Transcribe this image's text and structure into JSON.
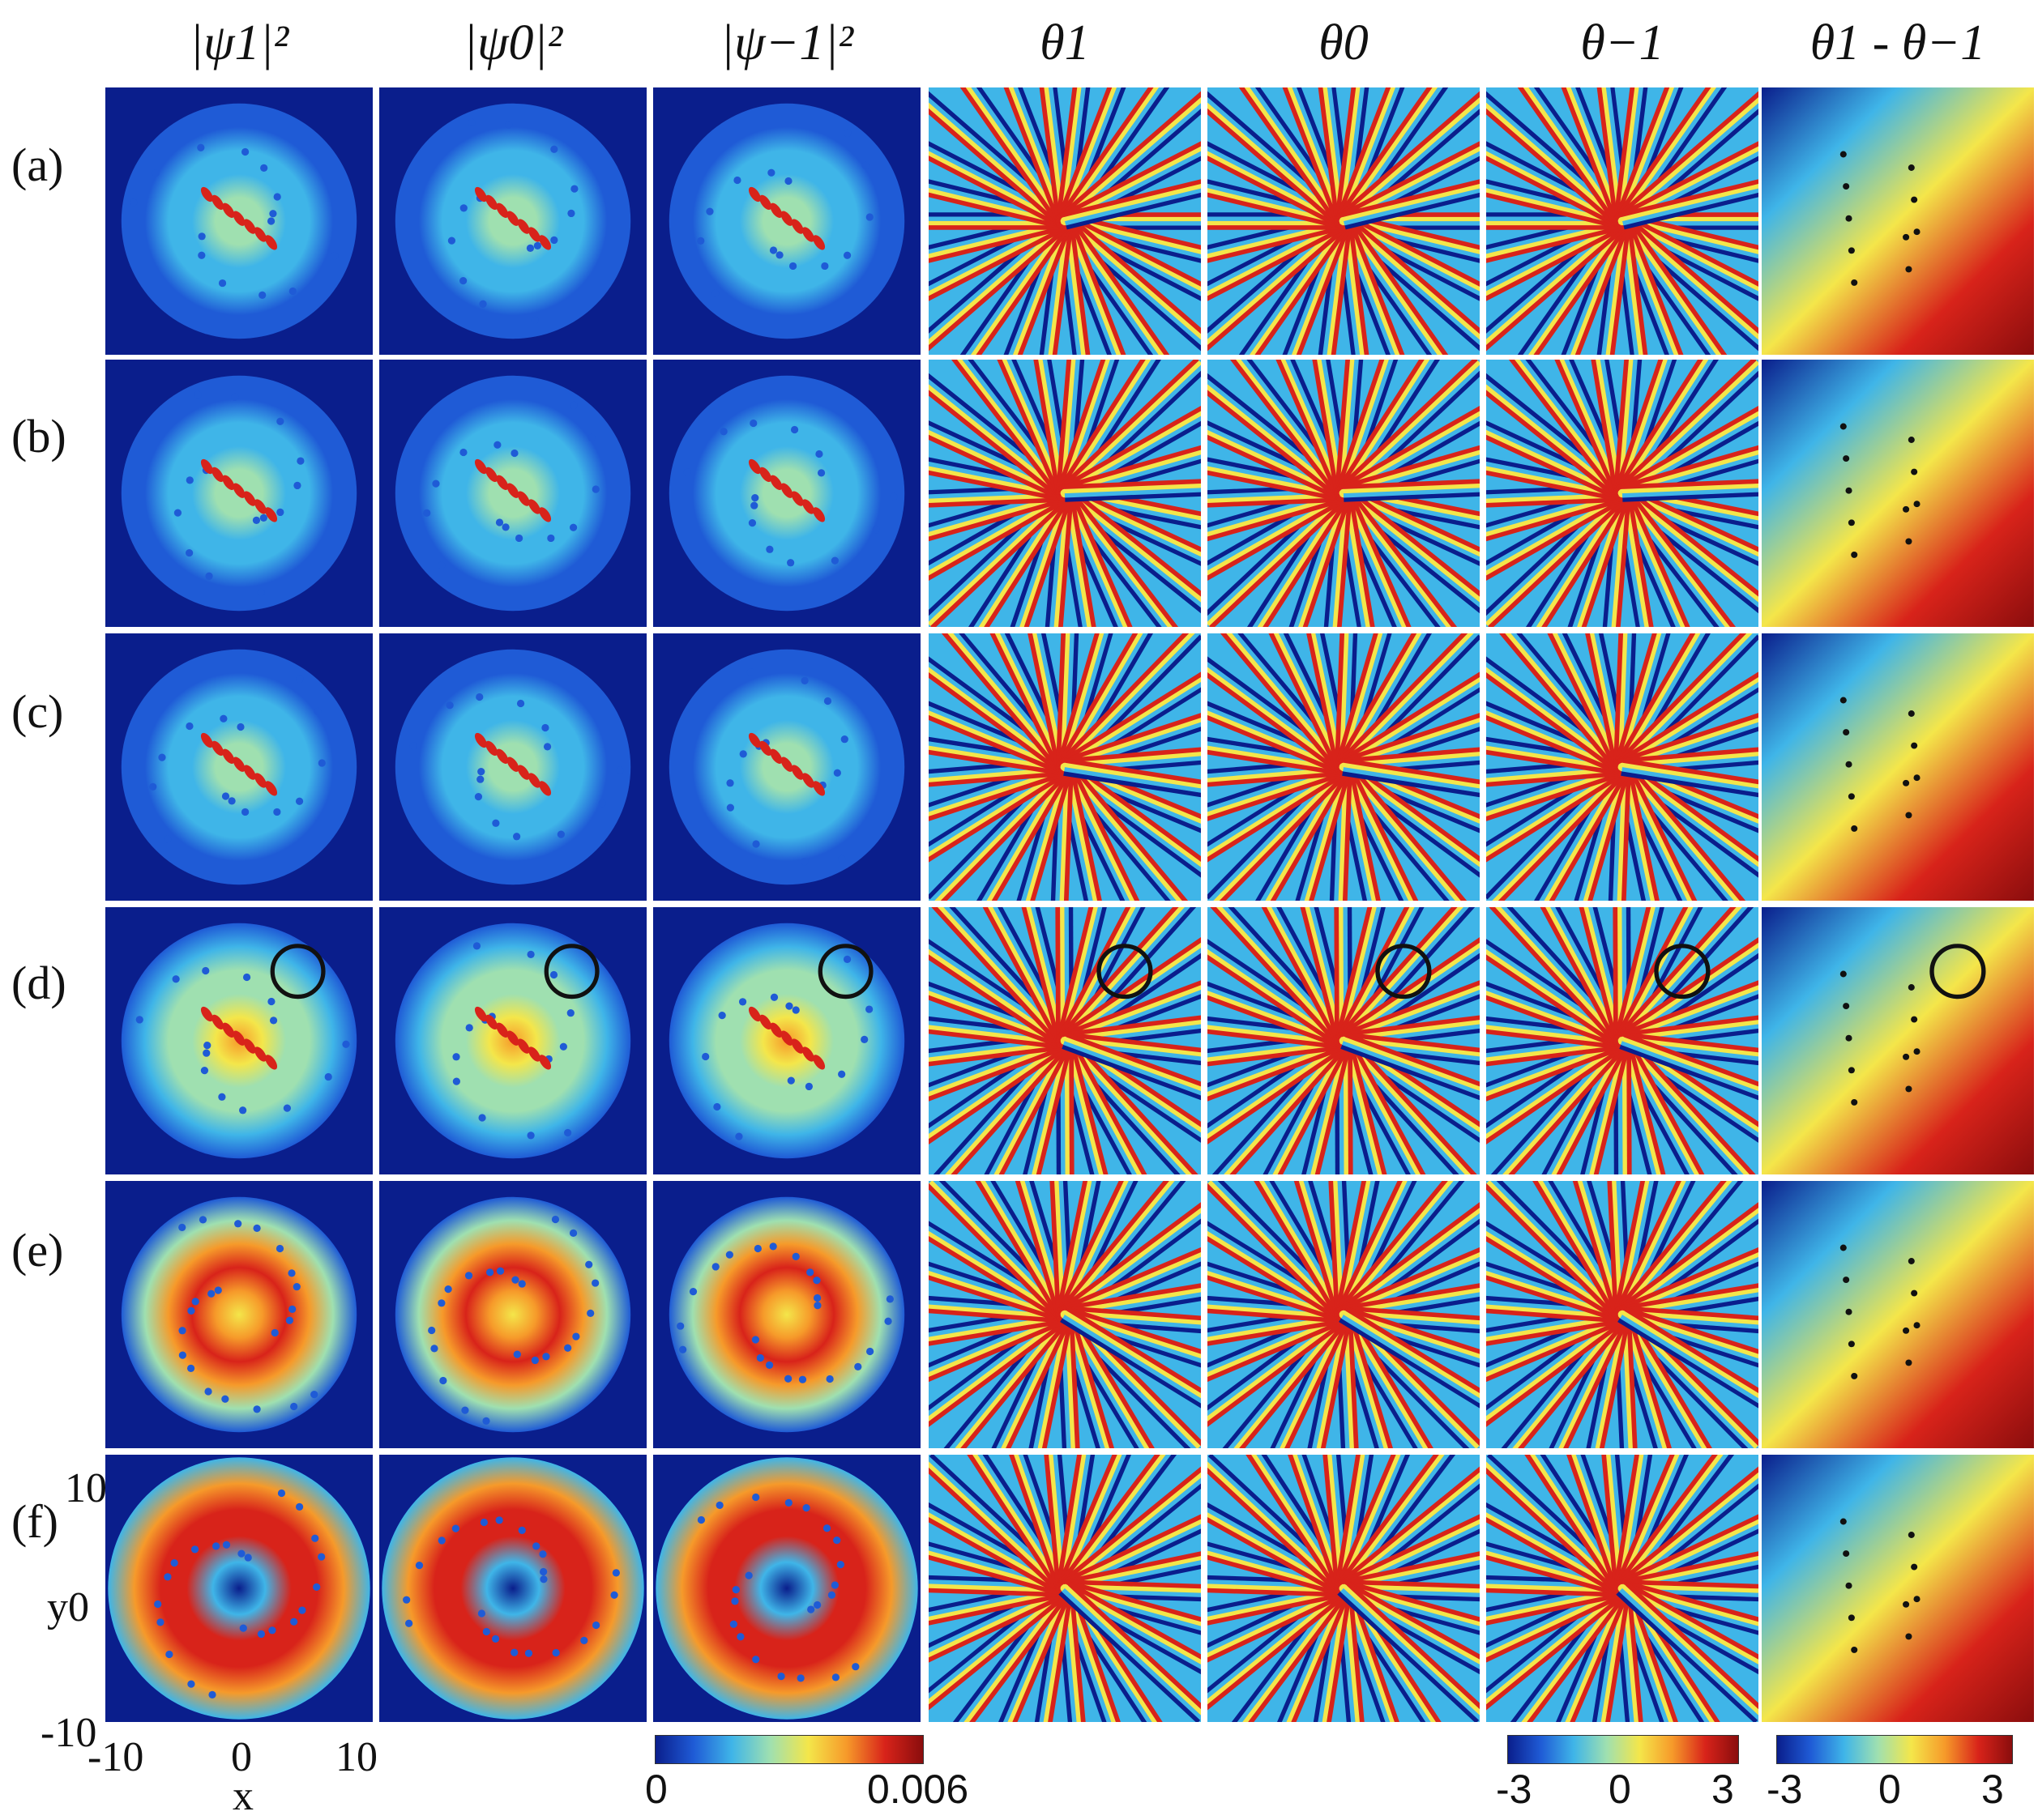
{
  "columns": [
    {
      "label": "|ψ1|²",
      "kind": "density"
    },
    {
      "label": "|ψ0|²",
      "kind": "density"
    },
    {
      "label": "|ψ−1|²",
      "kind": "density"
    },
    {
      "label": "θ1",
      "kind": "phase"
    },
    {
      "label": "θ0",
      "kind": "phase"
    },
    {
      "label": "θ−1",
      "kind": "phase"
    },
    {
      "label": "θ1 - θ−1",
      "kind": "relphase"
    }
  ],
  "rows": [
    {
      "label": "(a)",
      "fill": 0.45
    },
    {
      "label": "(b)",
      "fill": 0.45
    },
    {
      "label": "(c)",
      "fill": 0.5
    },
    {
      "label": "(d)",
      "fill": 0.55
    },
    {
      "label": "(e)",
      "fill": 0.8
    },
    {
      "label": "(f)",
      "fill": 0.95
    }
  ],
  "circled_row": "(d)",
  "axes": {
    "y_ticks": [
      "10",
      "y0",
      "-10"
    ],
    "x_ticks": [
      "-10",
      "0",
      "10"
    ],
    "x_label": "x"
  },
  "colorbars": {
    "density": {
      "min": "0",
      "max": "0.006"
    },
    "phase": {
      "ticks": [
        "-3",
        "0",
        "3"
      ]
    },
    "relphase": {
      "ticks": [
        "-3",
        "0",
        "3"
      ]
    }
  },
  "colormap": [
    "#0a1e8c",
    "#1f5bd6",
    "#3fb5e8",
    "#9fe0b0",
    "#f4e64a",
    "#f69a2a",
    "#d8231a",
    "#8a0d0d"
  ]
}
